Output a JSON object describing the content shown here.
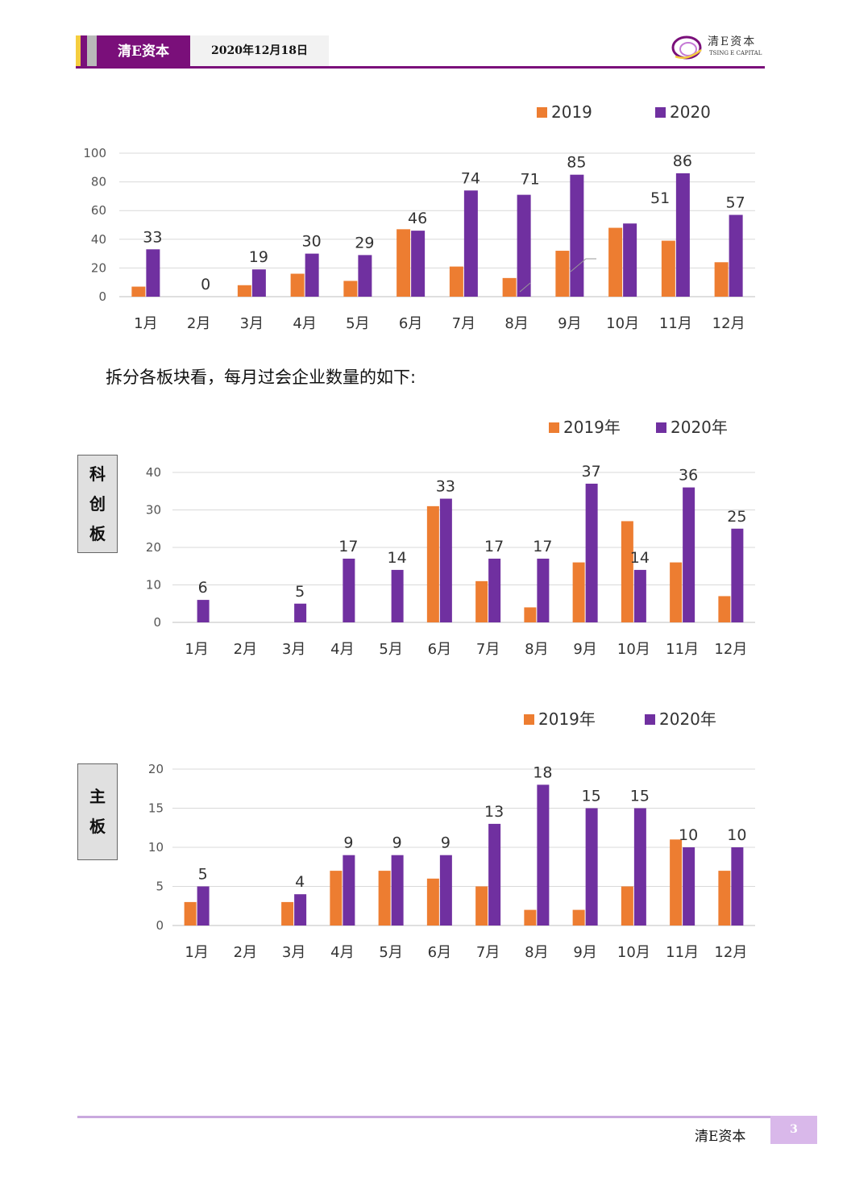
{
  "header": {
    "brand": "清E资本",
    "date": "2020年12月18日",
    "logo_cn": "清E资本",
    "logo_en": "TSING E CAPITAL",
    "accent": "#7a0f7a",
    "stripe_colors": [
      "#f5cd3f",
      "#7a0f7a",
      "#b9b9b9"
    ]
  },
  "body_text": "拆分各板块看，每月过会企业数量的如下:",
  "side_labels": {
    "star": [
      "科",
      "创",
      "板"
    ],
    "main": [
      "主",
      "板"
    ]
  },
  "chart_data": [
    {
      "type": "bar",
      "categories": [
        "1月",
        "2月",
        "3月",
        "4月",
        "5月",
        "6月",
        "7月",
        "8月",
        "9月",
        "10月",
        "11月",
        "12月"
      ],
      "series": [
        {
          "name": "2019",
          "color": "#ed7d31",
          "values": [
            7,
            0,
            8,
            16,
            11,
            47,
            21,
            13,
            32,
            48,
            39,
            24
          ]
        },
        {
          "name": "2020",
          "color": "#7030a0",
          "values": [
            33,
            0,
            19,
            30,
            29,
            46,
            74,
            71,
            85,
            51,
            86,
            57
          ]
        }
      ],
      "data_labels": [
        33,
        0,
        19,
        30,
        29,
        46,
        74,
        71,
        85,
        51,
        86,
        57
      ],
      "ylim": [
        0,
        100
      ],
      "yticks": [
        0,
        20,
        40,
        60,
        80,
        100
      ],
      "grid": true,
      "legend": "top-right"
    },
    {
      "type": "bar",
      "categories": [
        "1月",
        "2月",
        "3月",
        "4月",
        "5月",
        "6月",
        "7月",
        "8月",
        "9月",
        "10月",
        "11月",
        "12月"
      ],
      "series": [
        {
          "name": "2019年",
          "color": "#ed7d31",
          "values": [
            0,
            0,
            0,
            0,
            0,
            31,
            11,
            4,
            16,
            27,
            16,
            7
          ]
        },
        {
          "name": "2020年",
          "color": "#7030a0",
          "values": [
            6,
            0,
            5,
            17,
            14,
            33,
            17,
            17,
            37,
            14,
            36,
            25
          ]
        }
      ],
      "data_labels": [
        6,
        null,
        5,
        17,
        14,
        33,
        17,
        17,
        37,
        14,
        36,
        25
      ],
      "ylim": [
        0,
        40
      ],
      "yticks": [
        0,
        10,
        20,
        30,
        40
      ],
      "grid": true,
      "legend": "top-right"
    },
    {
      "type": "bar",
      "categories": [
        "1月",
        "2月",
        "3月",
        "4月",
        "5月",
        "6月",
        "7月",
        "8月",
        "9月",
        "10月",
        "11月",
        "12月"
      ],
      "series": [
        {
          "name": "2019年",
          "color": "#ed7d31",
          "values": [
            3,
            0,
            3,
            7,
            7,
            6,
            5,
            2,
            2,
            5,
            11,
            7
          ]
        },
        {
          "name": "2020年",
          "color": "#7030a0",
          "values": [
            5,
            0,
            4,
            9,
            9,
            9,
            13,
            18,
            15,
            15,
            10,
            10
          ]
        }
      ],
      "data_labels": [
        5,
        null,
        4,
        9,
        9,
        9,
        13,
        18,
        15,
        15,
        10,
        10
      ],
      "ylim": [
        0,
        20
      ],
      "yticks": [
        0,
        5,
        10,
        15,
        20
      ],
      "grid": true,
      "legend": "top-right"
    }
  ],
  "footer": {
    "brand": "清E资本",
    "page": "3"
  }
}
